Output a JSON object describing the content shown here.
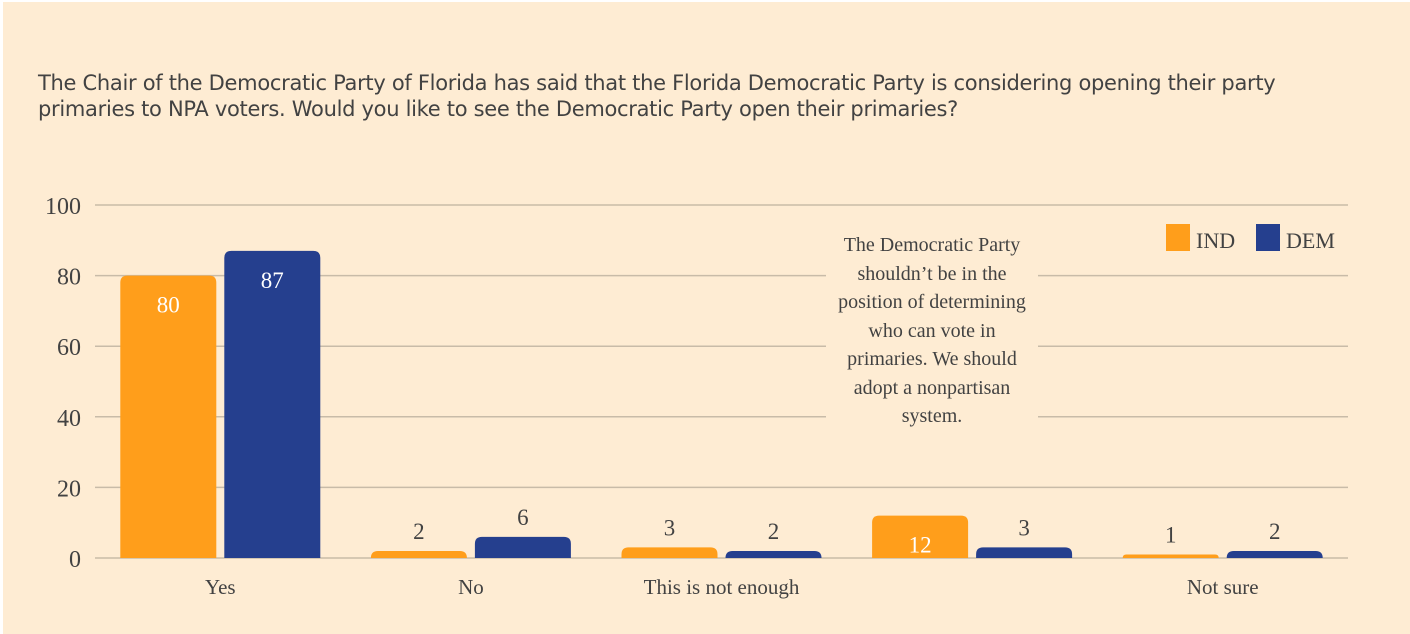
{
  "chart_data": {
    "type": "bar",
    "title": "The Chair of the Democratic Party of Florida has said that the Florida Democratic Party is considering opening their party primaries to NPA voters. Would you like to see the Democratic Party open their primaries?",
    "categories": [
      "Yes",
      "No",
      "This is not enough",
      "",
      "Not sure"
    ],
    "series": [
      {
        "name": "IND",
        "color": "#ff9e1b",
        "values": [
          80,
          2,
          3,
          12,
          1
        ],
        "label_inside": [
          true,
          false,
          false,
          true,
          false
        ]
      },
      {
        "name": "DEM",
        "color": "#253f8e",
        "values": [
          87,
          6,
          2,
          3,
          2
        ],
        "label_inside": [
          true,
          false,
          false,
          false,
          false
        ]
      }
    ],
    "xlabel": "",
    "ylabel": "",
    "ylim": [
      0,
      100
    ],
    "yticks": [
      0,
      20,
      40,
      60,
      80,
      100
    ],
    "grid": true,
    "legend": "top-right",
    "annotation": "The Democratic Party shouldn’t be in the position of determining who can vote in primaries. We should adopt a nonpartisan system."
  },
  "colors": {
    "background": "#feecd3",
    "text": "#424242",
    "grid": "#c8bba8",
    "label_inside": "#ffffff"
  }
}
